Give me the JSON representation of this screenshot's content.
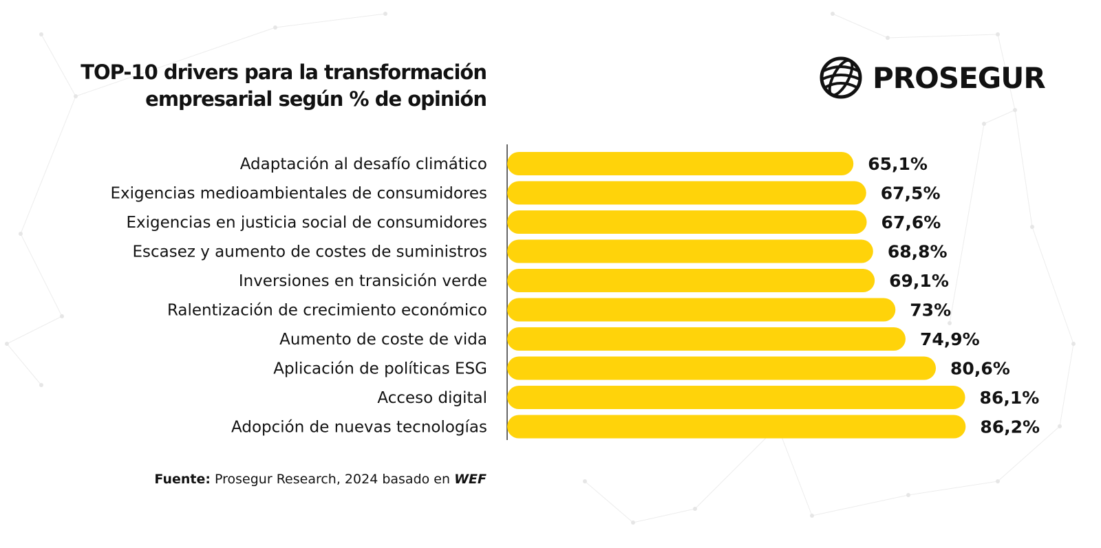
{
  "header": {
    "title_line1": "TOP-10 drivers para la transformación",
    "title_line2": "empresarial según % de opinión"
  },
  "logo": {
    "text": "PROSEGUR",
    "icon": "globe-icon"
  },
  "source": {
    "label": "Fuente:",
    "text": "Prosegur Research, 2024 basado en",
    "emphasis": "WEF"
  },
  "colors": {
    "bar": "#FFD30A",
    "text": "#111111",
    "axis": "#333333"
  },
  "chart_data": {
    "type": "bar",
    "orientation": "horizontal",
    "categories": [
      "Adaptación al desafío climático",
      "Exigencias medioambientales de consumidores",
      "Exigencias en justicia social de consumidores",
      "Escasez y aumento de costes de suministros",
      "Inversiones en transición verde",
      "Ralentización de crecimiento económico",
      "Aumento de coste de vida",
      "Aplicación de políticas ESG",
      "Acceso digital",
      "Adopción de nuevas tecnologías"
    ],
    "values": [
      65.1,
      67.5,
      67.6,
      68.8,
      69.1,
      73,
      74.9,
      80.6,
      86.1,
      86.2
    ],
    "value_labels": [
      "65,1%",
      "67,5%",
      "67,6%",
      "68,8%",
      "69,1%",
      "73%",
      "74,9%",
      "80,6%",
      "86,1%",
      "86,2%"
    ],
    "xlim": [
      0,
      100
    ],
    "grid": false,
    "legend": "none"
  }
}
